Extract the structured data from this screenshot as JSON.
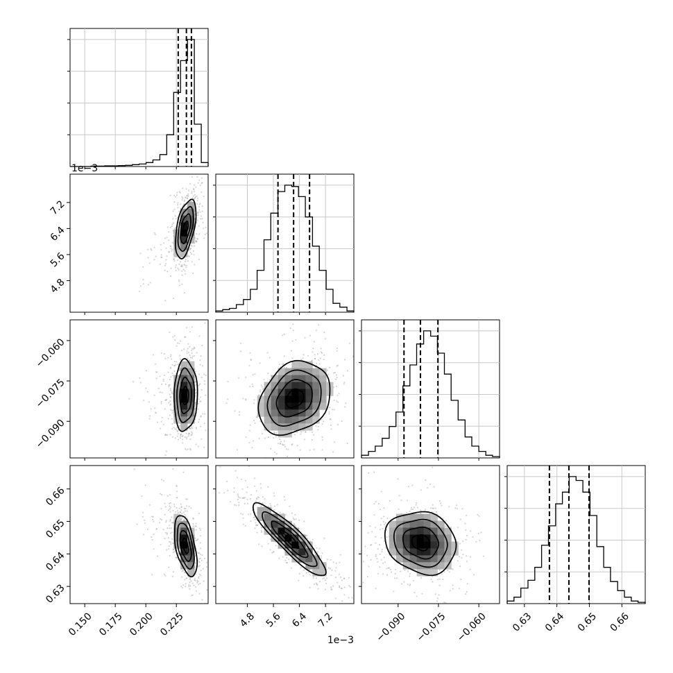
{
  "chart_data": {
    "type": "corner",
    "title": "",
    "grid": true,
    "parameters": [
      {
        "index": 0,
        "axis_offset_label": "",
        "axis_range": [
          0.138,
          0.251
        ],
        "tick_values": [
          0.15,
          0.175,
          0.2,
          0.225
        ],
        "tick_labels": [
          "0.150",
          "0.175",
          "0.200",
          "0.225"
        ],
        "quantiles": [
          0.2265,
          0.2332,
          0.2373
        ]
      },
      {
        "index": 1,
        "axis_offset_label": "1e−3",
        "axis_range": [
          0.00383,
          0.00807
        ],
        "tick_values": [
          0.0048,
          0.0056,
          0.0064,
          0.0072
        ],
        "tick_labels": [
          "4.8",
          "5.6",
          "6.4",
          "7.2"
        ],
        "quantiles": [
          0.00574,
          0.00622,
          0.00671
        ]
      },
      {
        "index": 2,
        "axis_offset_label": "",
        "axis_range": [
          -0.1036,
          -0.0523
        ],
        "tick_values": [
          -0.09,
          -0.075,
          -0.06
        ],
        "tick_labels": [
          "−0.090",
          "−0.075",
          "−0.060"
        ],
        "quantiles": [
          -0.0878,
          -0.0817,
          -0.0752
        ]
      },
      {
        "index": 3,
        "axis_offset_label": "",
        "axis_range": [
          0.6247,
          0.6672
        ],
        "tick_values": [
          0.63,
          0.64,
          0.65,
          0.66
        ],
        "tick_labels": [
          "0.63",
          "0.64",
          "0.65",
          "0.66"
        ],
        "quantiles": [
          0.6377,
          0.6437,
          0.6499
        ]
      }
    ],
    "histograms": [
      {
        "param": 0,
        "bin_edges": [
          0.138,
          0.1437,
          0.1493,
          0.155,
          0.1606,
          0.1663,
          0.1719,
          0.1776,
          0.1832,
          0.1889,
          0.1945,
          0.2002,
          0.2058,
          0.2115,
          0.2171,
          0.2228,
          0.2284,
          0.2341,
          0.2397,
          0.2454,
          0.251
        ],
        "counts": [
          0,
          0,
          0,
          0.3,
          0.3,
          0.5,
          0.5,
          0.7,
          0.9,
          1.4,
          1.9,
          3,
          5,
          9,
          24,
          56,
          80,
          96,
          32,
          3
        ]
      },
      {
        "param": 1,
        "bin_edges": [
          0.00383,
          0.00404,
          0.00425,
          0.00446,
          0.00468,
          0.00489,
          0.0051,
          0.00531,
          0.00552,
          0.00574,
          0.00595,
          0.00616,
          0.00637,
          0.00658,
          0.0068,
          0.00701,
          0.00722,
          0.00743,
          0.00764,
          0.00786,
          0.00807
        ],
        "counts": [
          1,
          2,
          3,
          6,
          10,
          18,
          33,
          57,
          78,
          95,
          100,
          99,
          91,
          75,
          52,
          33,
          18,
          7,
          4,
          1
        ]
      },
      {
        "param": 2,
        "bin_edges": [
          -0.1036,
          -0.101,
          -0.0985,
          -0.0959,
          -0.0933,
          -0.0908,
          -0.0882,
          -0.0856,
          -0.0831,
          -0.0805,
          -0.0779,
          -0.0754,
          -0.0728,
          -0.0703,
          -0.0677,
          -0.0651,
          -0.0626,
          -0.06,
          -0.0574,
          -0.0549,
          -0.0523
        ],
        "counts": [
          2,
          5,
          9,
          15,
          24,
          35,
          55,
          71,
          87,
          97,
          93,
          80,
          64,
          44,
          29,
          16,
          9,
          5,
          2,
          1
        ]
      },
      {
        "param": 3,
        "bin_edges": [
          0.6247,
          0.6268,
          0.6289,
          0.6311,
          0.6332,
          0.6353,
          0.6374,
          0.6396,
          0.6417,
          0.6438,
          0.6459,
          0.648,
          0.6502,
          0.6523,
          0.6544,
          0.6565,
          0.6587,
          0.6608,
          0.6629,
          0.665,
          0.6672
        ],
        "counts": [
          2,
          5,
          12,
          18,
          28,
          45,
          60,
          77,
          86,
          98,
          95,
          86,
          68,
          44,
          28,
          17,
          10,
          5,
          2,
          1
        ]
      }
    ],
    "pairs": [
      {
        "x_param": 0,
        "y_param": 1,
        "center": [
          0.2325,
          0.0064
        ],
        "sigma": [
          0.0042,
          0.00045
        ],
        "rho": 0.5,
        "tail": [
          -0.035,
          -0.0012
        ]
      },
      {
        "x_param": 0,
        "y_param": 2,
        "center": [
          0.2325,
          -0.0805
        ],
        "sigma": [
          0.0048,
          0.0066
        ],
        "rho": 0.05,
        "tail": [
          -0.035,
          0.0
        ]
      },
      {
        "x_param": 0,
        "y_param": 3,
        "center": [
          0.2325,
          0.6425
        ],
        "sigma": [
          0.0046,
          0.0047
        ],
        "rho": -0.5,
        "tail": [
          -0.035,
          0.007
        ]
      },
      {
        "x_param": 1,
        "y_param": 2,
        "center": [
          0.00625,
          -0.0815
        ],
        "sigma": [
          0.00055,
          0.0068
        ],
        "rho": 0.25,
        "tail": [
          0,
          0
        ]
      },
      {
        "x_param": 1,
        "y_param": 3,
        "center": [
          0.0061,
          0.6445
        ],
        "sigma": [
          0.00056,
          0.0056
        ],
        "rho": -0.9,
        "tail": [
          0,
          0
        ]
      },
      {
        "x_param": 2,
        "y_param": 3,
        "center": [
          -0.0815,
          0.6435
        ],
        "sigma": [
          0.0066,
          0.0048
        ],
        "rho": -0.15,
        "tail": [
          0,
          0
        ]
      }
    ],
    "contour_levels": [
      "0.5-sigma",
      "1-sigma",
      "1.5-sigma",
      "2-sigma"
    ],
    "colors": {
      "histogram": "#000000",
      "contour": "#000000",
      "scatter": "#9e9e9e",
      "density_dark": "#000000",
      "grid": "#c8c8c8"
    }
  }
}
